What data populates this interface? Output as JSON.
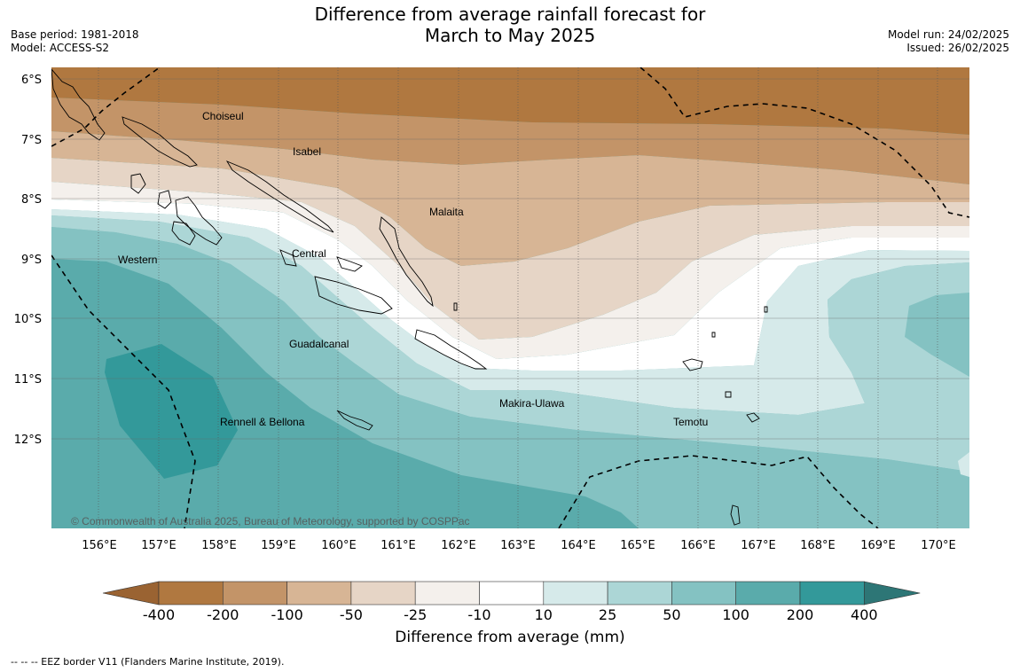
{
  "title": {
    "line1": "Difference from average rainfall forecast for",
    "line2": "March to May 2025"
  },
  "meta": {
    "base_period": "Base period: 1981-2018",
    "model": "Model: ACCESS-S2",
    "model_run": "Model run: 24/02/2025",
    "issued": "Issued: 26/02/2025"
  },
  "map": {
    "lat_labels": [
      "6°S",
      "7°S",
      "8°S",
      "9°S",
      "10°S",
      "11°S",
      "12°S"
    ],
    "lon_labels": [
      "156°E",
      "157°E",
      "158°E",
      "159°E",
      "160°E",
      "161°E",
      "162°E",
      "163°E",
      "164°E",
      "165°E",
      "166°E",
      "167°E",
      "168°E",
      "169°E",
      "170°E"
    ],
    "region_labels": {
      "choiseul": "Choiseul",
      "isabel": "Isabel",
      "malaita": "Malaita",
      "central": "Central",
      "western": "Western",
      "guadalcanal": "Guadalcanal",
      "makira": "Makira-Ulawa",
      "rennell": "Rennell & Bellona",
      "temotu": "Temotu"
    },
    "copyright": "© Commonwealth of Australia 2025, Bureau of Meteorology, supported by COSPPac"
  },
  "colorbar": {
    "ticks": [
      "-400",
      "-200",
      "-100",
      "-50",
      "-25",
      "-10",
      "10",
      "25",
      "50",
      "100",
      "200",
      "400"
    ],
    "colors": [
      "#9a6332",
      "#b07840",
      "#c39468",
      "#d7b595",
      "#e6d5c6",
      "#f4f0ec",
      "#ffffff",
      "#d6eaea",
      "#acd6d6",
      "#84c2c2",
      "#5aabab",
      "#33999a",
      "#2d7676"
    ],
    "title": "Difference from average (mm)"
  },
  "footer": "--  --  -- EEZ border V11 (Flanders Marine Institute, 2019)."
}
